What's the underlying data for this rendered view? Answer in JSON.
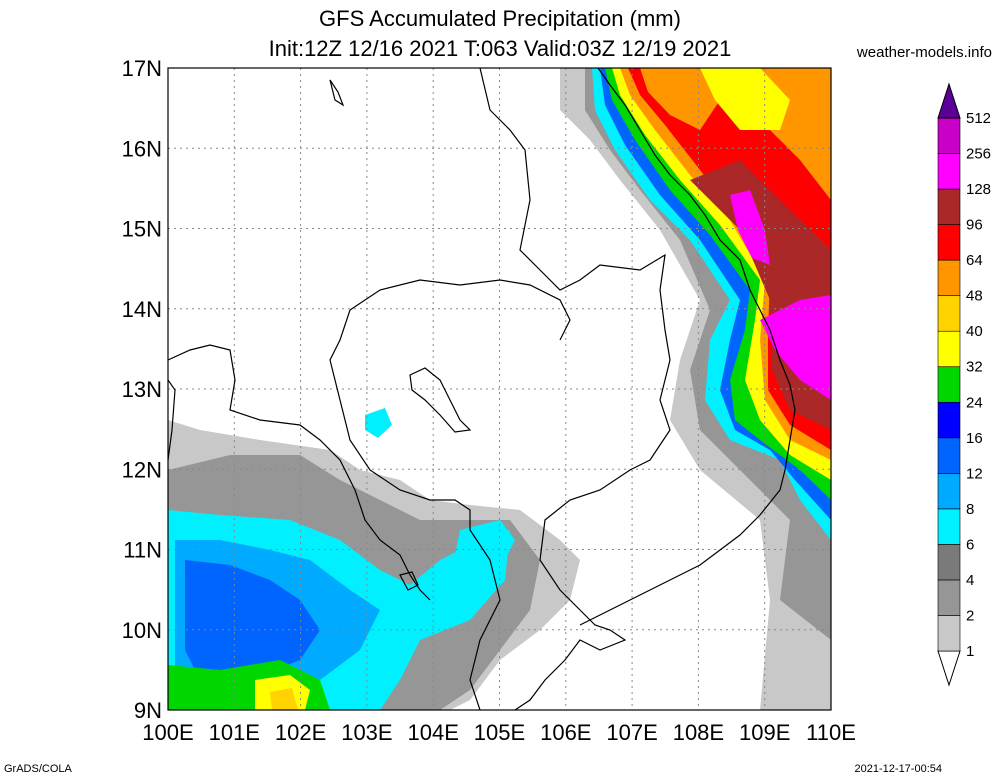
{
  "title": {
    "line1": "GFS Accumulated Precipitation (mm)",
    "line2": "Init:12Z 12/16 2021 T:063 Valid:03Z 12/19 2021"
  },
  "source": "weather-models.info",
  "footer": {
    "left": "GrADS/COLA",
    "right": "2021-12-17-00:54"
  },
  "map": {
    "lat_labels": [
      "17N",
      "16N",
      "15N",
      "14N",
      "13N",
      "12N",
      "11N",
      "10N",
      "9N"
    ],
    "lon_labels": [
      "100E",
      "101E",
      "102E",
      "103E",
      "104E",
      "105E",
      "106E",
      "107E",
      "108E",
      "109E",
      "110E"
    ],
    "lat_range": [
      9,
      17
    ],
    "lon_range": [
      100,
      110
    ],
    "grid": true
  },
  "colorbar": {
    "labels": [
      "1",
      "2",
      "4",
      "6",
      "8",
      "12",
      "16",
      "24",
      "32",
      "40",
      "48",
      "64",
      "96",
      "128",
      "256",
      "512"
    ],
    "colors": [
      "#c8c8c8",
      "#969696",
      "#7a7a7a",
      "#00f0ff",
      "#00aaff",
      "#0064ff",
      "#0000ff",
      "#00d700",
      "#ffff00",
      "#ffd200",
      "#ff9600",
      "#ff0000",
      "#aa2828",
      "#ff00ff",
      "#c800c8",
      "#8c00aa",
      "#5a0096"
    ]
  }
}
